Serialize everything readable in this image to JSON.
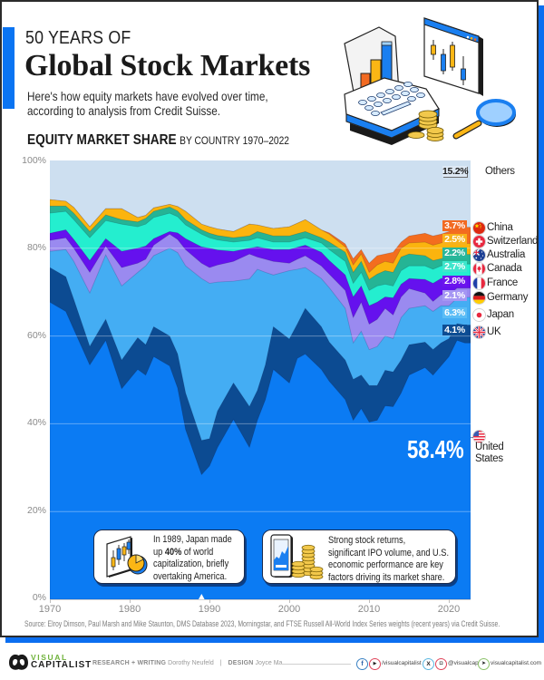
{
  "header": {
    "kicker": "50 YEARS OF",
    "title": "Global Stock Markets",
    "subtitle_line1": "Here's how equity markets have evolved over time,",
    "subtitle_line2": "according to analysis from Credit Suisse."
  },
  "section": {
    "title": "EQUITY MARKET SHARE",
    "subtitle": "BY COUNTRY 1970–2022"
  },
  "axes": {
    "y_ticks": [
      "100%",
      "80%",
      "60%",
      "40%",
      "20%",
      "0%"
    ],
    "x_ticks": [
      "1970",
      "1980",
      "1990",
      "2000",
      "2010",
      "2020"
    ]
  },
  "legend": {
    "items": [
      {
        "name": "Others",
        "value": "15.2%",
        "color": "#cddff0",
        "icon": "none"
      },
      {
        "name": "China",
        "value": "3.7%",
        "color": "#f26a22",
        "icon": "china-flag-icon"
      },
      {
        "name": "Switzerland",
        "value": "2.5%",
        "color": "#f7b21b",
        "icon": "switzerland-flag-icon"
      },
      {
        "name": "Australia",
        "value": "2.2%",
        "color": "#28b79b",
        "icon": "australia-flag-icon"
      },
      {
        "name": "Canada",
        "value": "2.7%",
        "color": "#3ee6cc",
        "icon": "canada-flag-icon"
      },
      {
        "name": "France",
        "value": "2.8%",
        "color": "#6c14ee",
        "icon": "france-flag-icon"
      },
      {
        "name": "Germany",
        "value": "2.1%",
        "color": "#a596f3",
        "icon": "germany-flag-icon"
      },
      {
        "name": "Japan",
        "value": "6.3%",
        "color": "#5bbdf6",
        "icon": "japan-flag-icon"
      },
      {
        "name": "UK",
        "value": "4.1%",
        "color": "#0d4d93",
        "icon": "uk-flag-icon"
      },
      {
        "name_line1": "United",
        "name_line2": "States",
        "value": "58.4%",
        "color": "#0b7bf3",
        "icon": "us-flag-icon"
      }
    ]
  },
  "annotations": [
    {
      "line1": "In 1989, Japan made",
      "line2_pre": "up ",
      "line2_bold": "40%",
      "line2_post": " of world",
      "line3": "capitalization, briefly",
      "line4": "overtaking America.",
      "icon": "candlestick-chart-icon"
    },
    {
      "line1": "Strong stock returns,",
      "line2": "significant IPO volume, and U.S.",
      "line3": "economic performance are key",
      "line4": "factors driving its market share.",
      "icon": "phone-coins-icon"
    }
  ],
  "source": "Source: Elroy Dimson, Paul Marsh and Mike Staunton, DMS Database 2023, Morningstar, and FTSE Russell All-World Index Series weights (recent years) via Credit Suisse.",
  "footer": {
    "brand_top": "VISUAL",
    "brand_bottom": "CAPITALIST",
    "research_label": "RESEARCH + WRITING",
    "research_name": "Dorothy Neufeld",
    "separator": "|",
    "design_label": "DESIGN",
    "design_name": "Joyce Ma",
    "social_handle_1": "/visualcapitalist",
    "social_handle_2": "@visualcap",
    "website": "visualcapitalist.com"
  },
  "chart_data": {
    "type": "area",
    "stacked": true,
    "title": "EQUITY MARKET SHARE BY COUNTRY 1970–2022",
    "xlabel": "",
    "ylabel": "",
    "xlim": [
      1970,
      2022.7
    ],
    "ylim": [
      0,
      100
    ],
    "y_ticks": [
      0,
      20,
      40,
      60,
      80,
      100
    ],
    "x_ticks": [
      1970,
      1980,
      1990,
      2000,
      2010,
      2020
    ],
    "grid": true,
    "legend_position": "right",
    "x": [
      1970,
      1972,
      1973,
      1975,
      1977,
      1979,
      1981,
      1982,
      1983,
      1985,
      1986,
      1987,
      1989,
      1990,
      1991,
      1993,
      1995,
      1996,
      1997,
      1998,
      2000,
      2001,
      2002,
      2004,
      2005,
      2007,
      2008,
      2009,
      2010,
      2011,
      2012,
      2013,
      2014,
      2015,
      2017,
      2018,
      2019,
      2020,
      2021,
      2022
    ],
    "series": [
      {
        "name": "United States",
        "color": "#0b7bf3",
        "values": [
          67.7,
          65.6,
          61.5,
          53.4,
          59.0,
          48.0,
          52.4,
          51.1,
          55.3,
          53.2,
          48.2,
          38.7,
          28.4,
          30.4,
          34.6,
          41.0,
          34.6,
          40.8,
          45.5,
          52.4,
          49.3,
          54.9,
          55.9,
          52.4,
          49.7,
          45.5,
          40.8,
          43.5,
          40.4,
          40.8,
          44.1,
          43.9,
          47.0,
          51.1,
          52.8,
          51.1,
          53.2,
          55.3,
          59.0,
          58.4
        ]
      },
      {
        "name": "UK",
        "color": "#0c4b92",
        "values": [
          7.9,
          7.9,
          6.8,
          4.2,
          4.8,
          6.5,
          7.2,
          6.9,
          6.8,
          6.8,
          7.7,
          8.3,
          7.8,
          6.2,
          8.3,
          8.3,
          9.3,
          6.8,
          7.9,
          9.7,
          10.0,
          7.8,
          10.4,
          9.7,
          8.9,
          9.0,
          9.3,
          7.6,
          8.3,
          7.9,
          8.1,
          7.9,
          7.5,
          6.9,
          5.8,
          5.8,
          5.2,
          4.1,
          3.8,
          4.1
        ]
      },
      {
        "name": "Japan",
        "color": "#44adf3",
        "values": [
          3.7,
          6.2,
          8.7,
          12.2,
          14.7,
          16.9,
          14.9,
          18.0,
          16.2,
          20.0,
          23.1,
          29.0,
          36.9,
          35.4,
          29.4,
          23.2,
          29.1,
          27.6,
          21.1,
          11.8,
          15.6,
          12.5,
          9.3,
          11.0,
          12.4,
          11.8,
          8.3,
          10.0,
          8.2,
          8.9,
          7.8,
          7.6,
          9.7,
          8.3,
          8.3,
          8.7,
          8.5,
          7.5,
          5.8,
          6.3
        ]
      },
      {
        "name": "Germany",
        "color": "#9a8af0",
        "values": [
          2.5,
          2.7,
          3.0,
          4.7,
          2.0,
          4.2,
          2.1,
          1.5,
          2.4,
          3.2,
          3.0,
          3.7,
          3.5,
          3.6,
          3.9,
          4.5,
          5.7,
          2.8,
          3.0,
          3.1,
          1.7,
          2.3,
          2.7,
          2.9,
          3.1,
          4.1,
          5.8,
          6.6,
          5.8,
          6.2,
          6.3,
          5.4,
          4.7,
          4.5,
          2.9,
          2.3,
          2.5,
          2.5,
          2.3,
          2.1
        ]
      },
      {
        "name": "France",
        "color": "#6511ee",
        "values": [
          1.6,
          1.8,
          2.0,
          2.7,
          1.7,
          3.7,
          3.4,
          3.0,
          1.5,
          0.6,
          1.5,
          2.5,
          3.7,
          4.4,
          3.4,
          2.3,
          1.3,
          2.3,
          2.5,
          2.7,
          3.1,
          2.7,
          2.4,
          3.1,
          3.1,
          3.5,
          4.7,
          3.7,
          4.2,
          3.9,
          2.6,
          3.9,
          2.9,
          2.3,
          3.1,
          4.1,
          3.7,
          3.7,
          2.7,
          2.8
        ]
      },
      {
        "name": "Canada",
        "color": "#24eecf",
        "values": [
          4.6,
          4.2,
          4.5,
          5.2,
          4.1,
          6.2,
          4.9,
          5.0,
          4.8,
          4.2,
          3.7,
          3.1,
          2.9,
          2.4,
          2.3,
          2.1,
          1.8,
          2.1,
          1.9,
          1.7,
          1.7,
          1.7,
          1.7,
          2.1,
          2.5,
          3.1,
          3.1,
          3.1,
          3.5,
          3.7,
          2.9,
          2.7,
          3.1,
          2.9,
          3.1,
          3.2,
          2.9,
          3.1,
          2.8,
          2.7
        ]
      },
      {
        "name": "Australia",
        "color": "#25b495",
        "values": [
          1.6,
          1.2,
          1.5,
          1.4,
          1.3,
          1.0,
          1.1,
          1.3,
          1.4,
          1.4,
          1.3,
          1.2,
          1.0,
          1.0,
          1.0,
          1.0,
          1.0,
          1.4,
          1.4,
          1.4,
          1.4,
          1.4,
          1.4,
          1.2,
          1.7,
          2.1,
          2.5,
          2.5,
          2.5,
          2.7,
          3.1,
          3.1,
          3.1,
          2.7,
          2.3,
          2.0,
          1.6,
          1.8,
          2.1,
          2.2
        ]
      },
      {
        "name": "Switzerland",
        "color": "#fbb40e",
        "values": [
          1.5,
          1.1,
          1.3,
          1.1,
          1.4,
          2.5,
          1.0,
          0.7,
          0.8,
          0.6,
          1.0,
          1.9,
          1.3,
          1.5,
          1.5,
          1.4,
          2.7,
          1.5,
          1.6,
          1.7,
          2.1,
          2.4,
          2.7,
          1.8,
          1.8,
          1.2,
          1.7,
          1.7,
          1.6,
          2.1,
          2.1,
          2.1,
          2.0,
          2.5,
          3.1,
          3.5,
          3.6,
          3.8,
          2.7,
          2.5
        ]
      },
      {
        "name": "China",
        "color": "#f36d1f",
        "values": [
          0,
          0,
          0,
          0,
          0,
          0,
          0,
          0,
          0,
          0,
          0,
          0,
          0,
          0,
          0,
          0,
          0,
          0,
          0,
          0,
          0,
          0,
          0,
          0,
          0.3,
          0.7,
          1.4,
          1.0,
          2.1,
          2.1,
          1.7,
          2.5,
          1.4,
          1.6,
          2.0,
          2.1,
          2.0,
          2.0,
          3.3,
          3.7
        ]
      },
      {
        "name": "Others",
        "color": "#cddff0",
        "values": [
          8.9,
          9.3,
          10.7,
          15.1,
          11.0,
          11.0,
          13.0,
          12.5,
          10.8,
          10.0,
          10.5,
          11.6,
          14.5,
          15.1,
          15.6,
          16.2,
          14.5,
          14.7,
          15.1,
          15.5,
          15.1,
          14.3,
          13.5,
          15.8,
          16.5,
          19.0,
          22.4,
          20.3,
          23.4,
          21.7,
          21.3,
          20.9,
          18.6,
          17.2,
          16.6,
          17.2,
          16.8,
          16.2,
          15.5,
          15.2
        ]
      }
    ],
    "end_labels_2022": {
      "Others": 15.2,
      "China": 3.7,
      "Switzerland": 2.5,
      "Australia": 2.2,
      "Canada": 2.7,
      "France": 2.8,
      "Germany": 2.1,
      "Japan": 6.3,
      "UK": 4.1,
      "United States": 58.4
    },
    "annotations": [
      {
        "x": 1989,
        "text": "In 1989, Japan made up 40% of world capitalization, briefly overtaking America."
      },
      {
        "x": 2022,
        "text": "Strong stock returns, significant IPO volume, and U.S. economic performance are key factors driving its market share."
      }
    ]
  }
}
